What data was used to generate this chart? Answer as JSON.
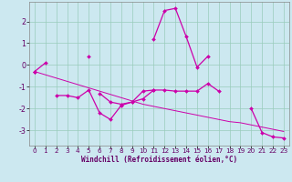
{
  "xlabel": "Windchill (Refroidissement éolien,°C)",
  "background_color": "#cce8f0",
  "grid_color": "#99ccbb",
  "line_color": "#cc00aa",
  "ylim": [
    -3.7,
    2.9
  ],
  "xlim": [
    -0.5,
    23.5
  ],
  "x": [
    0,
    1,
    2,
    3,
    4,
    5,
    6,
    7,
    8,
    9,
    10,
    11,
    12,
    13,
    14,
    15,
    16,
    17,
    18,
    19,
    20,
    21,
    22,
    23
  ],
  "series1": [
    -0.3,
    0.1,
    null,
    null,
    null,
    0.4,
    null,
    null,
    null,
    null,
    null,
    1.2,
    2.5,
    2.6,
    1.3,
    -0.1,
    0.4,
    null,
    null,
    null,
    null,
    null,
    null,
    null
  ],
  "series2": [
    -0.3,
    null,
    null,
    null,
    null,
    null,
    -1.3,
    -1.7,
    -1.8,
    -1.7,
    -1.2,
    -1.15,
    null,
    null,
    null,
    null,
    null,
    null,
    null,
    null,
    null,
    null,
    null,
    null
  ],
  "series3": [
    null,
    null,
    -1.4,
    -1.4,
    -1.5,
    -1.15,
    -2.2,
    -2.5,
    -1.85,
    -1.7,
    -1.55,
    -1.15,
    -1.15,
    -1.2,
    -1.2,
    -1.2,
    -0.85,
    -1.2,
    null,
    null,
    null,
    null,
    null,
    null
  ],
  "series4": [
    -0.3,
    null,
    null,
    null,
    null,
    null,
    null,
    null,
    null,
    null,
    null,
    null,
    null,
    null,
    null,
    null,
    null,
    null,
    null,
    null,
    -2.0,
    -3.1,
    -3.3,
    -3.35
  ],
  "trend": [
    -0.3,
    -0.45,
    -0.6,
    -0.75,
    -0.9,
    -1.05,
    -1.2,
    -1.35,
    -1.5,
    -1.65,
    -1.8,
    -1.9,
    -2.0,
    -2.1,
    -2.2,
    -2.3,
    -2.4,
    -2.5,
    -2.6,
    -2.65,
    -2.75,
    -2.85,
    -2.95,
    -3.05
  ],
  "yticks": [
    -3,
    -2,
    -1,
    0,
    1,
    2
  ],
  "xticks": [
    0,
    1,
    2,
    3,
    4,
    5,
    6,
    7,
    8,
    9,
    10,
    11,
    12,
    13,
    14,
    15,
    16,
    17,
    18,
    19,
    20,
    21,
    22,
    23
  ],
  "xlabel_fontsize": 5.5,
  "tick_fontsize": 5.2,
  "ytick_fontsize": 5.8
}
